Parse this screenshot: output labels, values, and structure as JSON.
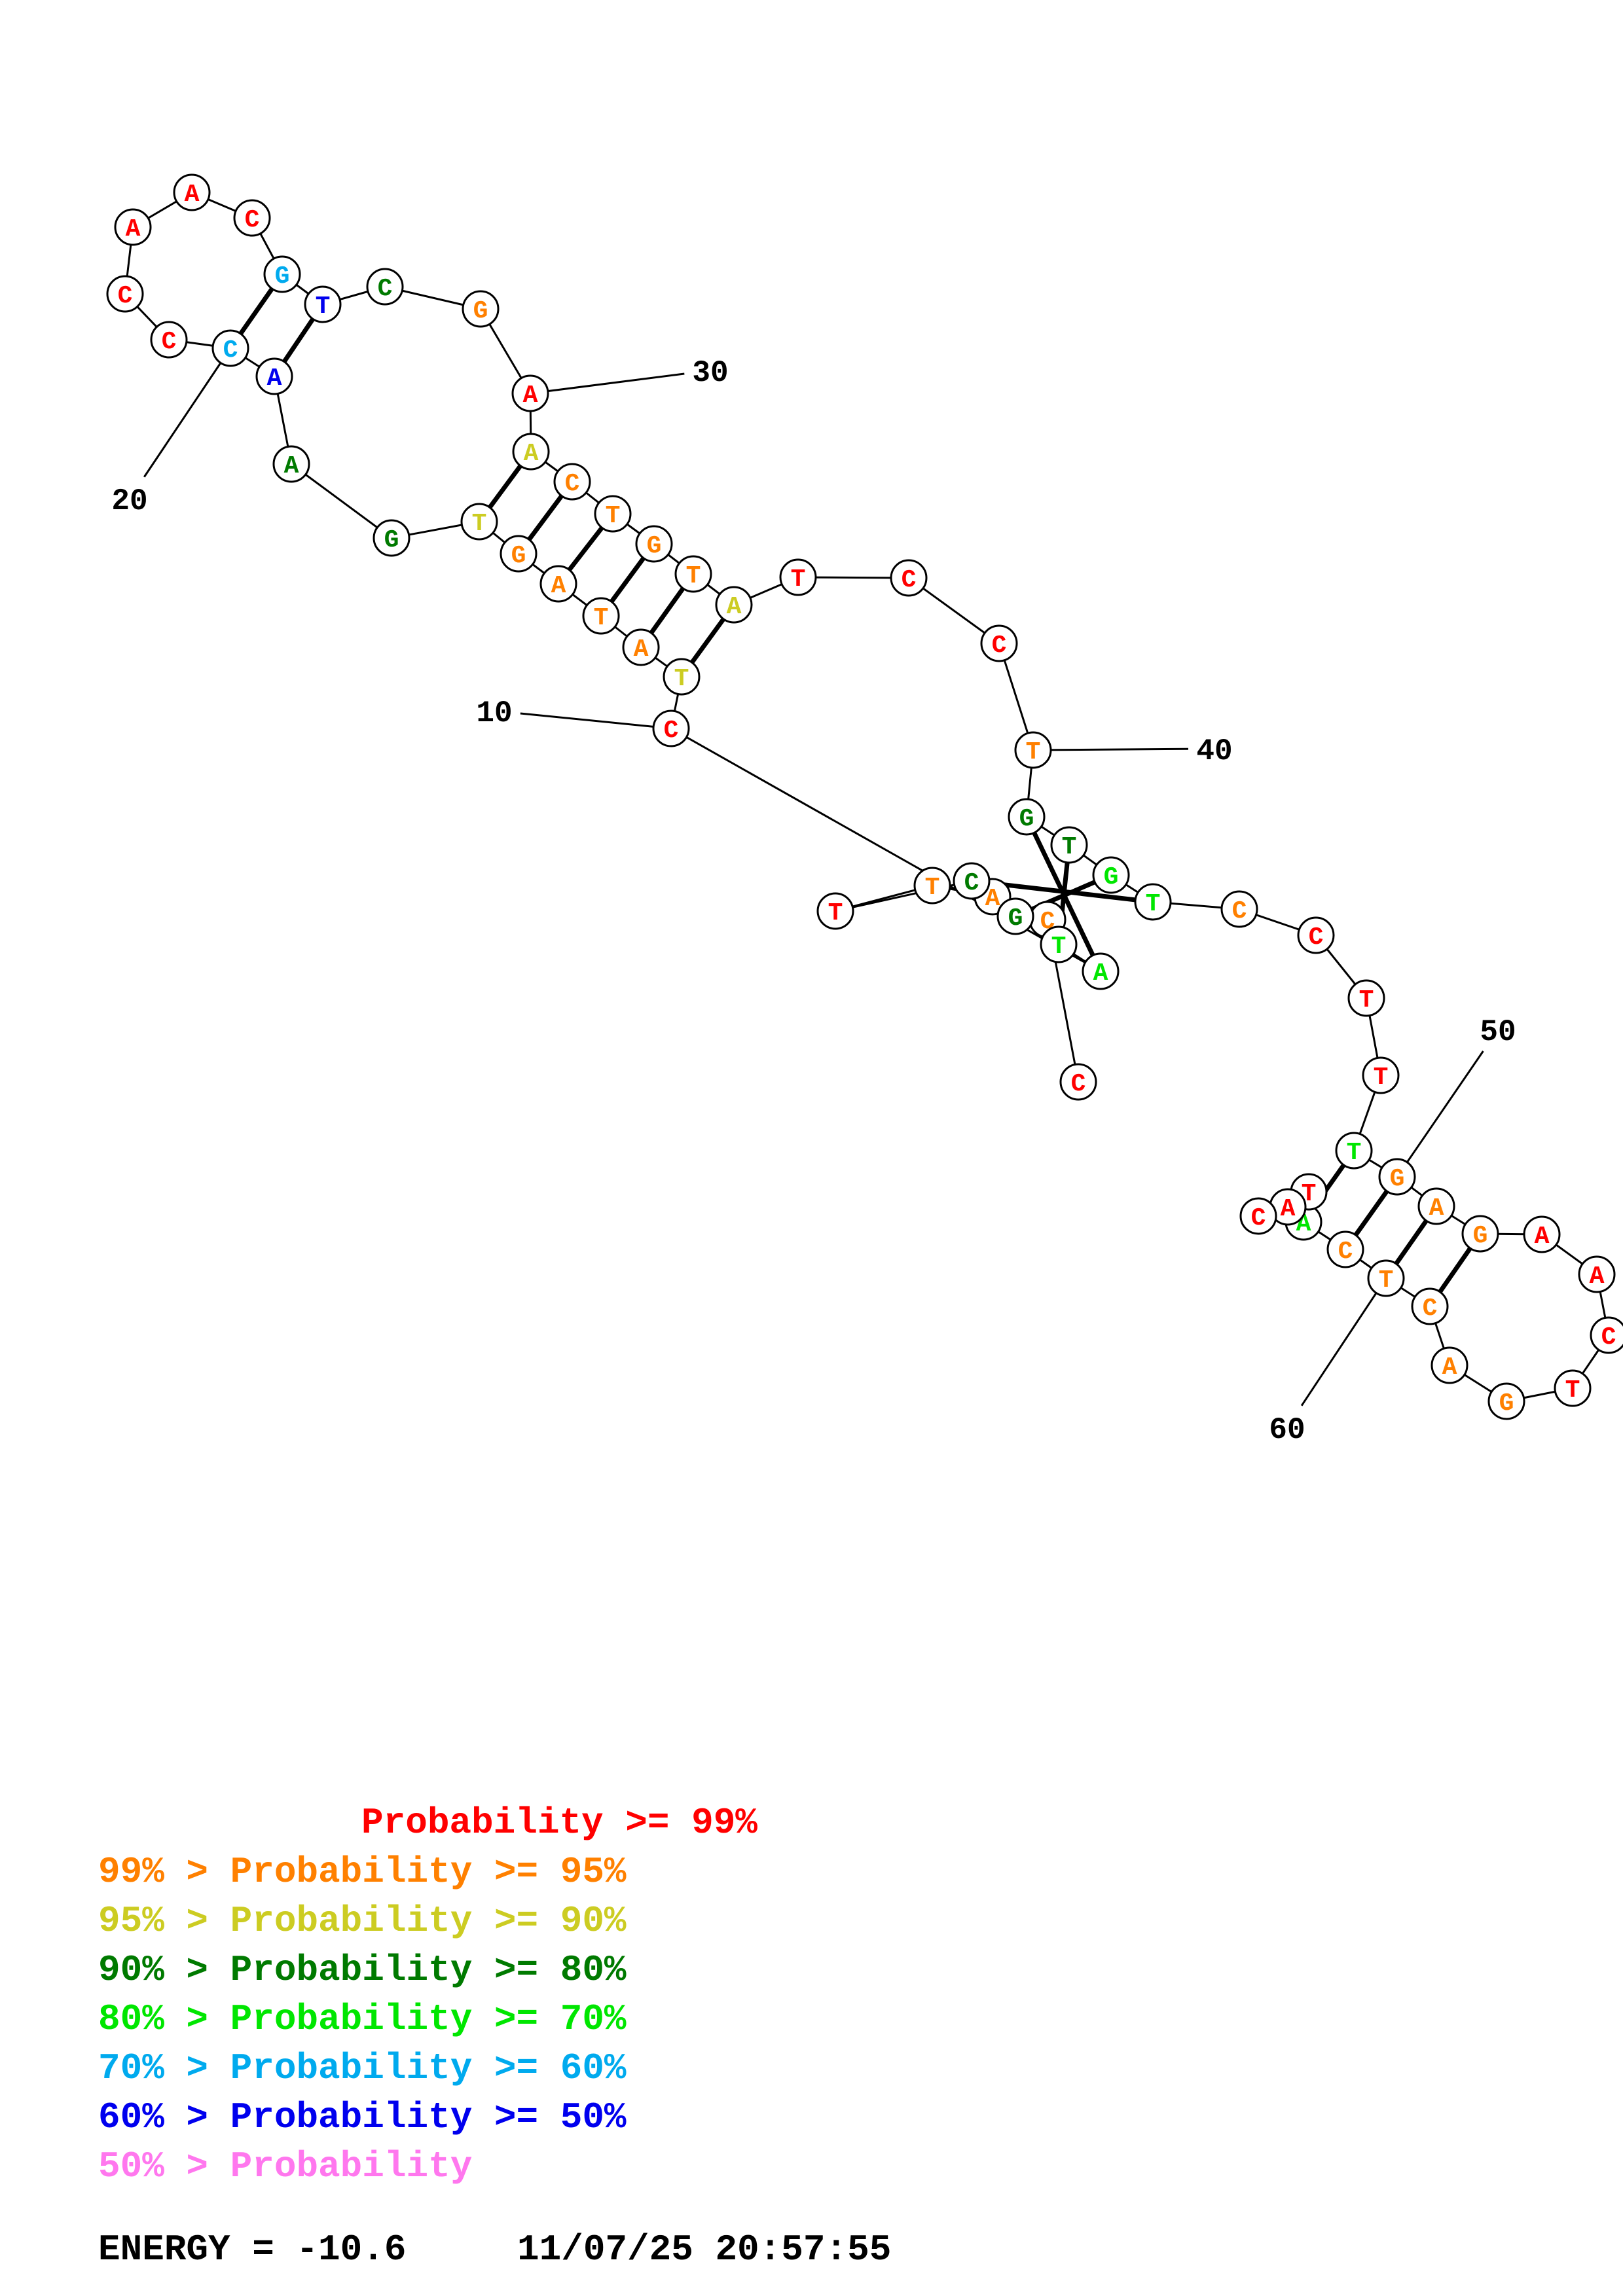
{
  "structure": {
    "bases": [
      {
        "n": 1,
        "nt": "C",
        "color": "red"
      },
      {
        "n": 2,
        "nt": "C",
        "color": "orange"
      },
      {
        "n": 3,
        "nt": "A",
        "color": "orange"
      },
      {
        "n": 4,
        "nt": "T",
        "color": "orange"
      },
      {
        "n": 5,
        "nt": "T",
        "color": "red"
      },
      {
        "n": 6,
        "nt": "C",
        "color": "darkgreen"
      },
      {
        "n": 7,
        "nt": "G",
        "color": "darkgreen"
      },
      {
        "n": 8,
        "nt": "T",
        "color": "green"
      },
      {
        "n": 9,
        "nt": "A",
        "color": "green"
      },
      {
        "n": 10,
        "nt": "C",
        "color": "red"
      },
      {
        "n": 11,
        "nt": "T",
        "color": "olive"
      },
      {
        "n": 12,
        "nt": "A",
        "color": "orange"
      },
      {
        "n": 13,
        "nt": "T",
        "color": "orange"
      },
      {
        "n": 14,
        "nt": "A",
        "color": "orange"
      },
      {
        "n": 15,
        "nt": "G",
        "color": "orange"
      },
      {
        "n": 16,
        "nt": "T",
        "color": "olive"
      },
      {
        "n": 17,
        "nt": "G",
        "color": "darkgreen"
      },
      {
        "n": 18,
        "nt": "A",
        "color": "darkgreen"
      },
      {
        "n": 19,
        "nt": "A",
        "color": "blue"
      },
      {
        "n": 20,
        "nt": "C",
        "color": "skyblue"
      },
      {
        "n": 21,
        "nt": "C",
        "color": "red"
      },
      {
        "n": 22,
        "nt": "C",
        "color": "red"
      },
      {
        "n": 23,
        "nt": "A",
        "color": "red"
      },
      {
        "n": 24,
        "nt": "A",
        "color": "red"
      },
      {
        "n": 25,
        "nt": "C",
        "color": "red"
      },
      {
        "n": 26,
        "nt": "G",
        "color": "skyblue"
      },
      {
        "n": 27,
        "nt": "T",
        "color": "blue"
      },
      {
        "n": 28,
        "nt": "C",
        "color": "darkgreen"
      },
      {
        "n": 29,
        "nt": "G",
        "color": "orange"
      },
      {
        "n": 30,
        "nt": "A",
        "color": "red"
      },
      {
        "n": 31,
        "nt": "A",
        "color": "olive"
      },
      {
        "n": 32,
        "nt": "C",
        "color": "orange"
      },
      {
        "n": 33,
        "nt": "T",
        "color": "orange"
      },
      {
        "n": 34,
        "nt": "G",
        "color": "orange"
      },
      {
        "n": 35,
        "nt": "T",
        "color": "orange"
      },
      {
        "n": 36,
        "nt": "A",
        "color": "olive"
      },
      {
        "n": 37,
        "nt": "T",
        "color": "red"
      },
      {
        "n": 38,
        "nt": "C",
        "color": "red"
      },
      {
        "n": 39,
        "nt": "C",
        "color": "red"
      },
      {
        "n": 40,
        "nt": "T",
        "color": "orange"
      },
      {
        "n": 41,
        "nt": "G",
        "color": "darkgreen"
      },
      {
        "n": 42,
        "nt": "T",
        "color": "darkgreen"
      },
      {
        "n": 43,
        "nt": "G",
        "color": "green"
      },
      {
        "n": 44,
        "nt": "T",
        "color": "green"
      },
      {
        "n": 45,
        "nt": "C",
        "color": "orange"
      },
      {
        "n": 46,
        "nt": "C",
        "color": "red"
      },
      {
        "n": 47,
        "nt": "T",
        "color": "red"
      },
      {
        "n": 48,
        "nt": "T",
        "color": "red"
      },
      {
        "n": 49,
        "nt": "T",
        "color": "green"
      },
      {
        "n": 50,
        "nt": "G",
        "color": "orange"
      },
      {
        "n": 51,
        "nt": "A",
        "color": "orange"
      },
      {
        "n": 52,
        "nt": "G",
        "color": "orange"
      },
      {
        "n": 53,
        "nt": "A",
        "color": "red"
      },
      {
        "n": 54,
        "nt": "A",
        "color": "red"
      },
      {
        "n": 55,
        "nt": "C",
        "color": "red"
      },
      {
        "n": 56,
        "nt": "T",
        "color": "red"
      },
      {
        "n": 57,
        "nt": "G",
        "color": "orange"
      },
      {
        "n": 58,
        "nt": "A",
        "color": "orange"
      },
      {
        "n": 59,
        "nt": "C",
        "color": "orange"
      },
      {
        "n": 60,
        "nt": "T",
        "color": "orange"
      },
      {
        "n": 61,
        "nt": "C",
        "color": "orange"
      },
      {
        "n": 62,
        "nt": "A",
        "color": "green"
      },
      {
        "n": 63,
        "nt": "T",
        "color": "red"
      },
      {
        "n": 64,
        "nt": "A",
        "color": "red"
      },
      {
        "n": 65,
        "nt": "C",
        "color": "red"
      }
    ],
    "pairs": [
      [
        6,
        44
      ],
      [
        7,
        43
      ],
      [
        8,
        42
      ],
      [
        9,
        41
      ],
      [
        11,
        36
      ],
      [
        12,
        35
      ],
      [
        13,
        34
      ],
      [
        14,
        33
      ],
      [
        15,
        32
      ],
      [
        16,
        31
      ],
      [
        19,
        27
      ],
      [
        20,
        26
      ],
      [
        49,
        62
      ],
      [
        50,
        61
      ],
      [
        51,
        60
      ],
      [
        52,
        59
      ]
    ],
    "position_labels": [
      {
        "n": 10,
        "text": "10"
      },
      {
        "n": 20,
        "text": "20"
      },
      {
        "n": 30,
        "text": "30"
      },
      {
        "n": 40,
        "text": "40"
      },
      {
        "n": 50,
        "text": "50"
      },
      {
        "n": 60,
        "text": "60"
      }
    ]
  },
  "legend": [
    {
      "prefix": "",
      "text": "Probability >= 99%",
      "color": "red"
    },
    {
      "prefix": "99% > ",
      "text": "Probability >= 95%",
      "color": "orange"
    },
    {
      "prefix": "95% > ",
      "text": "Probability >= 90%",
      "color": "olive"
    },
    {
      "prefix": "90% > ",
      "text": "Probability >= 80%",
      "color": "darkgreen"
    },
    {
      "prefix": "80% > ",
      "text": "Probability >= 70%",
      "color": "green"
    },
    {
      "prefix": "70% > ",
      "text": "Probability >= 60%",
      "color": "skyblue"
    },
    {
      "prefix": "60% > ",
      "text": "Probability >= 50%",
      "color": "blue"
    },
    {
      "prefix": "50% > ",
      "text": "Probability",
      "color": "pink"
    }
  ],
  "footer": {
    "energy": "ENERGY = -10.6",
    "timestamp": "11/07/25 20:57:55"
  },
  "colors": {
    "red": "#ff0000",
    "orange": "#ff8000",
    "olive": "#cccc22",
    "darkgreen": "#007a00",
    "green": "#00e600",
    "skyblue": "#00aaee",
    "blue": "#0000ee",
    "pink": "#ff77ee"
  }
}
